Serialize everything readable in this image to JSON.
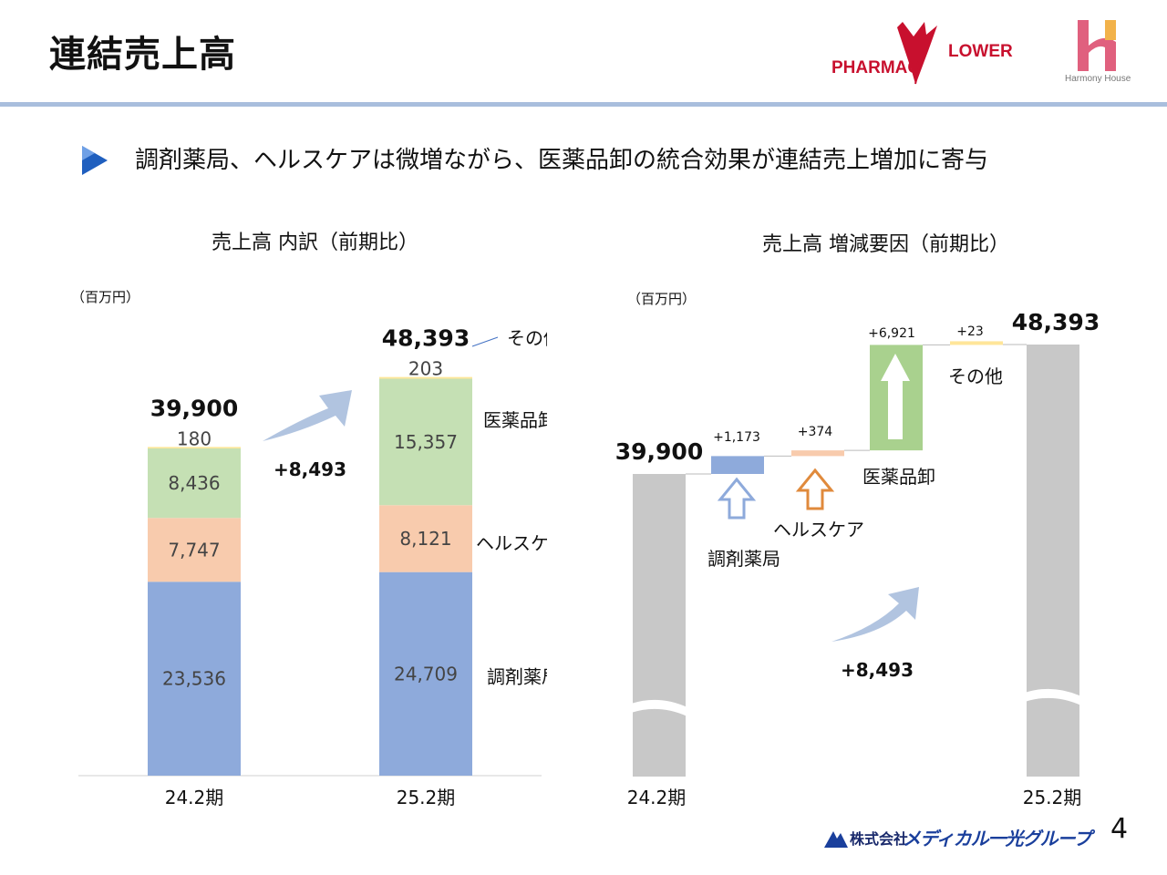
{
  "header": {
    "title": "連結売上高",
    "logo_pharmacy_left": "PHARMAC",
    "logo_pharmacy_right": "LOWER",
    "logo_harmony": "Harmony House"
  },
  "headline": "調剤薬局、ヘルスケアは微増ながら、医薬品卸の統合効果が連結売上増加に寄与",
  "unit_label": "（百万円）",
  "chart_data": [
    {
      "type": "bar",
      "stacked": true,
      "title": "売上高 内訳（前期比）",
      "categories": [
        "24.2期",
        "25.2期"
      ],
      "series": [
        {
          "name": "調剤薬局",
          "values": [
            23536,
            24709
          ],
          "labels": [
            "23,536",
            "24,709"
          ],
          "color": "#8eaadb"
        },
        {
          "name": "ヘルスケア",
          "values": [
            7747,
            8121
          ],
          "labels": [
            "7,747",
            "8,121"
          ],
          "color": "#f8cbad"
        },
        {
          "name": "医薬品卸",
          "values": [
            8436,
            15357
          ],
          "labels": [
            "8,436",
            "15,357"
          ],
          "color": "#c5e0b4"
        },
        {
          "name": "その他",
          "values": [
            180,
            203
          ],
          "labels": [
            "180",
            "203"
          ],
          "color": "#ffe699"
        }
      ],
      "totals": [
        39900,
        48393
      ],
      "total_labels": [
        "39,900",
        "48,393"
      ],
      "change_label": "+8,493",
      "ylim": [
        0,
        52000
      ]
    },
    {
      "type": "bar",
      "subtype": "waterfall",
      "title": "売上高 増減要因（前期比）",
      "categories": [
        "24.2期",
        "25.2期"
      ],
      "start": {
        "value": 39900,
        "label": "39,900"
      },
      "end": {
        "value": 48393,
        "label": "48,393"
      },
      "steps": [
        {
          "name": "調剤薬局",
          "value": 1173,
          "label": "+1,173",
          "color": "#8eaadb"
        },
        {
          "name": "ヘルスケア",
          "value": 374,
          "label": "+374",
          "color": "#f8cbad"
        },
        {
          "name": "医薬品卸",
          "value": 6921,
          "label": "+6,921",
          "color": "#a9d18e"
        },
        {
          "name": "その他",
          "value": 23,
          "label": "+23",
          "color": "#ffe699"
        }
      ],
      "change_label": "+8,493",
      "axis_break": true
    }
  ],
  "footer": {
    "company": "株式会社",
    "brand": "メディカル一光グループ",
    "page_number": "4"
  },
  "colors": {
    "title_rule": "#a9bedd",
    "end_bar": "#c8c8c8",
    "arrow": "#a9bedd",
    "logo_red": "#c8102e",
    "logo_pink": "#e0607e"
  }
}
